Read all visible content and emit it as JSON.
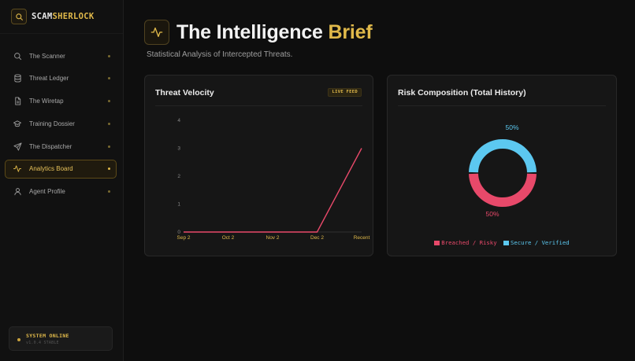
{
  "brand": {
    "name_part1": "SCAM",
    "name_part2": "SHERLOCK",
    "icon": "search-icon"
  },
  "sidebar": {
    "items": [
      {
        "label": "The Scanner",
        "icon": "search-icon",
        "active": false
      },
      {
        "label": "Threat Ledger",
        "icon": "database-icon",
        "active": false
      },
      {
        "label": "The Wiretap",
        "icon": "document-icon",
        "active": false
      },
      {
        "label": "Training Dossier",
        "icon": "graduation-cap-icon",
        "active": false
      },
      {
        "label": "The Dispatcher",
        "icon": "send-icon",
        "active": false
      },
      {
        "label": "Analytics Board",
        "icon": "activity-icon",
        "active": true
      },
      {
        "label": "Agent Profile",
        "icon": "user-icon",
        "active": false
      }
    ],
    "status": {
      "title": "SYSTEM ONLINE",
      "subtitle": "v1.0.4 STABLE"
    }
  },
  "header": {
    "icon": "activity-icon",
    "title_part1": "The Intelligence",
    "title_part2": "Brief",
    "subtitle": "Statistical Analysis of Intercepted Threats."
  },
  "velocity_card": {
    "title": "Threat Velocity",
    "badge": "LIVE FEED"
  },
  "composition_card": {
    "title": "Risk Composition (Total History)"
  },
  "colors": {
    "accent": "#e0b94a",
    "risk": "#e8496a",
    "secure": "#5cc8f0"
  },
  "chart_data": [
    {
      "type": "line",
      "title": "Threat Velocity",
      "categories": [
        "Sep 2",
        "Oct 2",
        "Nov 2",
        "Dec 2",
        "Recent"
      ],
      "series": [
        {
          "values": [
            0,
            0,
            0,
            0,
            3
          ]
        }
      ],
      "y_ticks": [
        0,
        1,
        2,
        3,
        4
      ],
      "ylim": [
        0,
        4
      ],
      "grid": false
    },
    {
      "type": "pie",
      "title": "Risk Composition (Total History)",
      "donut": true,
      "series": [
        {
          "name": "Breached / Risky",
          "value": 50,
          "label": "50%",
          "color": "#e8496a"
        },
        {
          "name": "Secure / Verified",
          "value": 50,
          "label": "50%",
          "color": "#5cc8f0"
        }
      ],
      "legend": "bottom"
    }
  ]
}
